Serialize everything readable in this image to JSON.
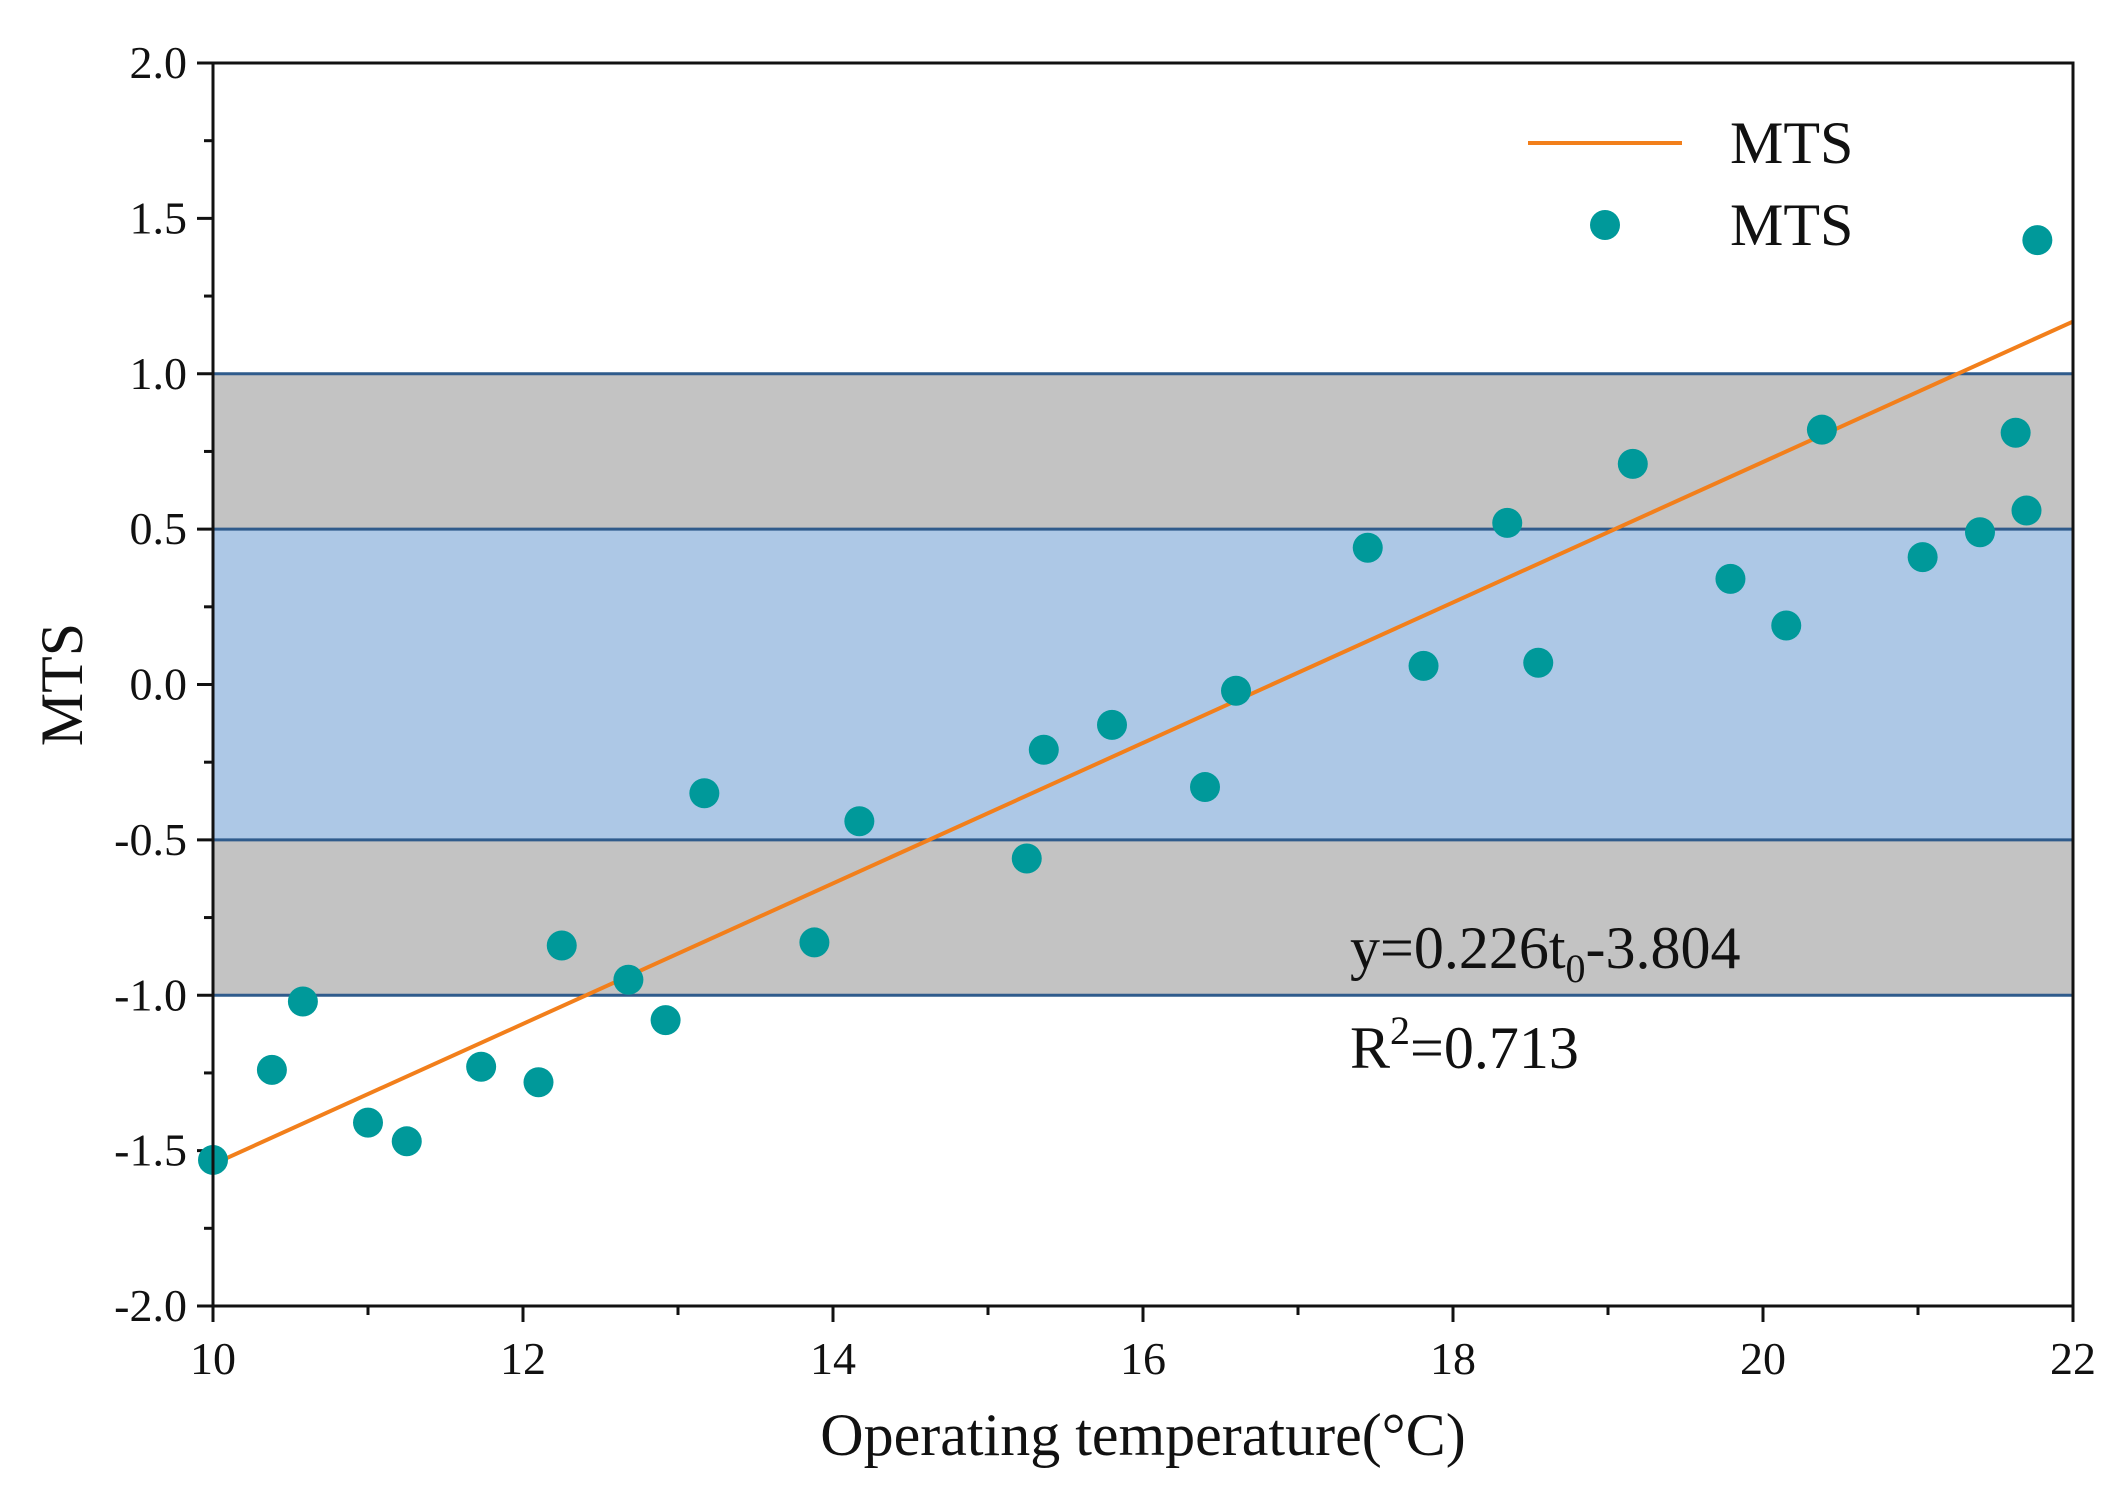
{
  "chart_data": {
    "type": "scatter",
    "title": "",
    "xlabel": "Operating temperature(°C)",
    "ylabel": "MTS",
    "xlim": [
      10,
      22
    ],
    "ylim": [
      -2.0,
      2.0
    ],
    "xticks": [
      10,
      12,
      14,
      16,
      18,
      20,
      22
    ],
    "yticks": [
      -2.0,
      -1.5,
      -1.0,
      -0.5,
      0.0,
      0.5,
      1.0,
      1.5,
      2.0
    ],
    "ytick_labels": [
      "-2.0",
      "-1.5",
      "-1.0",
      "-0.5",
      "0.0",
      "0.5",
      "1.0",
      "1.5",
      "2.0"
    ],
    "grid": false,
    "legend_position": "top-right",
    "bands": [
      {
        "from": -1.0,
        "to": -0.5,
        "color": "#c3c3c3"
      },
      {
        "from": -0.5,
        "to": 0.5,
        "color": "#adc8e6"
      },
      {
        "from": 0.5,
        "to": 1.0,
        "color": "#c3c3c3"
      }
    ],
    "band_line_color": "#2f5b8c",
    "series": [
      {
        "name": "MTS",
        "kind": "line",
        "color": "#f27f1b",
        "slope": 0.226,
        "intercept": -3.804,
        "x": [
          10,
          22
        ]
      },
      {
        "name": "MTS",
        "kind": "scatter",
        "color": "#00999a",
        "points": [
          [
            10.0,
            -1.53
          ],
          [
            10.38,
            -1.24
          ],
          [
            10.58,
            -1.02
          ],
          [
            11.0,
            -1.41
          ],
          [
            11.25,
            -1.47
          ],
          [
            11.73,
            -1.23
          ],
          [
            12.1,
            -1.28
          ],
          [
            12.25,
            -0.84
          ],
          [
            12.68,
            -0.95
          ],
          [
            12.92,
            -1.08
          ],
          [
            13.17,
            -0.35
          ],
          [
            13.88,
            -0.83
          ],
          [
            14.17,
            -0.44
          ],
          [
            15.25,
            -0.56
          ],
          [
            15.36,
            -0.21
          ],
          [
            15.8,
            -0.13
          ],
          [
            16.4,
            -0.33
          ],
          [
            16.6,
            -0.02
          ],
          [
            17.45,
            0.44
          ],
          [
            17.81,
            0.06
          ],
          [
            18.35,
            0.52
          ],
          [
            18.55,
            0.07
          ],
          [
            19.16,
            0.71
          ],
          [
            19.79,
            0.34
          ],
          [
            20.15,
            0.19
          ],
          [
            20.38,
            0.82
          ],
          [
            21.03,
            0.41
          ],
          [
            21.4,
            0.49
          ],
          [
            21.63,
            0.81
          ],
          [
            21.7,
            0.56
          ],
          [
            21.77,
            1.43
          ]
        ]
      }
    ],
    "annotations": {
      "equation_prefix": "y=0.226t",
      "equation_subscript": "0",
      "equation_suffix": "-3.804",
      "r2_prefix": "R",
      "r2_superscript": "2",
      "r2_suffix": "=0.713"
    }
  }
}
